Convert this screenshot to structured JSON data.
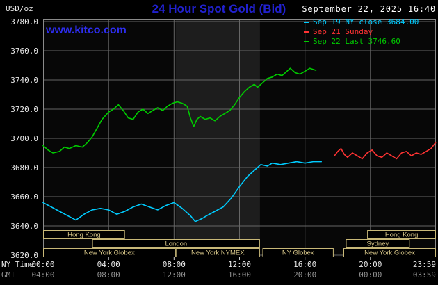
{
  "colors": {
    "background": "#000000",
    "title_blue": "#2121cf",
    "watermark_blue": "#2d2dee",
    "grid": "#666666",
    "plot_border": "#8a8a8a",
    "plot_fill": "#070707",
    "axis_text": "#e8e8e8",
    "gmt_text": "#8f8f8f",
    "session_border": "#c8b878",
    "session_text": "#d9c88a",
    "nymex_band": "#1d1d1d",
    "tick_mark": "#cfcfcf"
  },
  "header": {
    "unit_label": "USD/oz",
    "title": "24 Hour Spot Gold (Bid)",
    "datetime": "September 22, 2025 16:40",
    "watermark": "www.kitco.com"
  },
  "legend": [
    {
      "label": "Sep 19 NY close 3684.00",
      "color": "#00ccff"
    },
    {
      "label": "Sep 21 Sunday",
      "color": "#ff3333"
    },
    {
      "label": "Sep 22 Last 3746.60",
      "color": "#00cc00"
    }
  ],
  "axes": {
    "ny_time_label": "NY Time",
    "gmt_label": "GMT",
    "y_ticks": [
      {
        "value": 3780,
        "label": "3780.0"
      },
      {
        "value": 3760,
        "label": "3760.0"
      },
      {
        "value": 3740,
        "label": "3740.0"
      },
      {
        "value": 3720,
        "label": "3720.0"
      },
      {
        "value": 3700,
        "label": "3700.0"
      },
      {
        "value": 3680,
        "label": "3680.0"
      },
      {
        "value": 3660,
        "label": "3660.0"
      },
      {
        "value": 3640,
        "label": "3640.0"
      },
      {
        "value": 3620,
        "label": "3620.0"
      }
    ],
    "ny_ticks": [
      {
        "hour": 0,
        "label": "00:00"
      },
      {
        "hour": 4,
        "label": "04:00"
      },
      {
        "hour": 8,
        "label": "08:00"
      },
      {
        "hour": 12,
        "label": "12:00"
      },
      {
        "hour": 16,
        "label": "16:00"
      },
      {
        "hour": 20,
        "label": "20:00"
      },
      {
        "hour": 23.983,
        "label": "23:59",
        "align": "right"
      }
    ],
    "gmt_ticks": [
      {
        "hour": 0,
        "label": "04:00"
      },
      {
        "hour": 4,
        "label": "08:00"
      },
      {
        "hour": 8,
        "label": "12:00"
      },
      {
        "hour": 12,
        "label": "16:00"
      },
      {
        "hour": 16,
        "label": "20:00"
      },
      {
        "hour": 20,
        "label": "00:00"
      },
      {
        "hour": 23.983,
        "label": "03:59",
        "align": "right"
      }
    ]
  },
  "sessions": {
    "rows": [
      [
        {
          "label": "Hong Kong",
          "start": 0,
          "end": 5.0
        },
        {
          "label": "Hong Kong",
          "start": 19.8,
          "end": 24
        }
      ],
      [
        {
          "label": "London",
          "start": 3.0,
          "end": 13.25
        },
        {
          "label": "Sydney",
          "start": 18.5,
          "end": 22.4
        }
      ],
      [
        {
          "label": "New York Globex",
          "start": 0,
          "end": 8.1
        },
        {
          "label": "New York NYMEX",
          "start": 8.1,
          "end": 13.25
        },
        {
          "label": "NY Globex",
          "start": 13.4,
          "end": 17.75
        },
        {
          "label": "New York Globex",
          "start": 18.35,
          "end": 24
        }
      ]
    ]
  },
  "chart_data": {
    "type": "line",
    "title": "24 Hour Spot Gold (Bid)",
    "xlabel": "NY Time (hours)",
    "ylabel": "USD/oz",
    "xlim_hours": [
      0,
      24
    ],
    "ylim": [
      3620,
      3780
    ],
    "y_grid_step": 20,
    "x_grid_hours": [
      4,
      8,
      12,
      16,
      20
    ],
    "highlight_band_hours": [
      8.1,
      13.25
    ],
    "series": [
      {
        "name": "Sep 19 NY close",
        "color": "#00ccff",
        "final_value": 3684.0,
        "points": [
          [
            0,
            3656
          ],
          [
            0.5,
            3653
          ],
          [
            1,
            3650
          ],
          [
            1.5,
            3647
          ],
          [
            2,
            3644
          ],
          [
            2.5,
            3648
          ],
          [
            3,
            3651
          ],
          [
            3.5,
            3652
          ],
          [
            4,
            3651
          ],
          [
            4.5,
            3648
          ],
          [
            5,
            3650
          ],
          [
            5.5,
            3653
          ],
          [
            6,
            3655
          ],
          [
            6.5,
            3653
          ],
          [
            7,
            3651
          ],
          [
            7.5,
            3654
          ],
          [
            8,
            3656
          ],
          [
            8.5,
            3652
          ],
          [
            9,
            3647
          ],
          [
            9.3,
            3643
          ],
          [
            9.7,
            3645
          ],
          [
            10,
            3647
          ],
          [
            10.5,
            3650
          ],
          [
            11,
            3653
          ],
          [
            11.5,
            3659
          ],
          [
            12,
            3667
          ],
          [
            12.5,
            3674
          ],
          [
            13,
            3679
          ],
          [
            13.3,
            3682
          ],
          [
            13.7,
            3681
          ],
          [
            14,
            3683
          ],
          [
            14.5,
            3682
          ],
          [
            15,
            3683
          ],
          [
            15.5,
            3684
          ],
          [
            16,
            3683
          ],
          [
            16.5,
            3684
          ],
          [
            17,
            3684
          ]
        ]
      },
      {
        "name": "Sep 21 Sunday",
        "color": "#ff3333",
        "points": [
          [
            17.8,
            3688
          ],
          [
            18,
            3691
          ],
          [
            18.2,
            3693
          ],
          [
            18.4,
            3689
          ],
          [
            18.6,
            3687
          ],
          [
            18.9,
            3690
          ],
          [
            19.2,
            3688
          ],
          [
            19.5,
            3686
          ],
          [
            19.8,
            3690
          ],
          [
            20.1,
            3692
          ],
          [
            20.4,
            3688
          ],
          [
            20.7,
            3687
          ],
          [
            21,
            3690
          ],
          [
            21.3,
            3688
          ],
          [
            21.6,
            3686
          ],
          [
            21.9,
            3690
          ],
          [
            22.2,
            3691
          ],
          [
            22.5,
            3688
          ],
          [
            22.8,
            3690
          ],
          [
            23.1,
            3689
          ],
          [
            23.4,
            3691
          ],
          [
            23.7,
            3693
          ],
          [
            23.98,
            3697
          ]
        ]
      },
      {
        "name": "Sep 22 Last",
        "color": "#00cc00",
        "final_value": 3746.6,
        "points": [
          [
            0,
            3695
          ],
          [
            0.3,
            3692
          ],
          [
            0.6,
            3690
          ],
          [
            1,
            3691
          ],
          [
            1.3,
            3694
          ],
          [
            1.6,
            3693
          ],
          [
            2,
            3695
          ],
          [
            2.4,
            3694
          ],
          [
            2.7,
            3697
          ],
          [
            3,
            3701
          ],
          [
            3.3,
            3707
          ],
          [
            3.6,
            3713
          ],
          [
            4,
            3718
          ],
          [
            4.3,
            3720
          ],
          [
            4.6,
            3723
          ],
          [
            4.9,
            3719
          ],
          [
            5.2,
            3714
          ],
          [
            5.5,
            3713
          ],
          [
            5.8,
            3718
          ],
          [
            6.1,
            3720
          ],
          [
            6.4,
            3717
          ],
          [
            6.7,
            3719
          ],
          [
            7,
            3721
          ],
          [
            7.3,
            3719
          ],
          [
            7.6,
            3722
          ],
          [
            7.9,
            3724
          ],
          [
            8.2,
            3725
          ],
          [
            8.5,
            3724
          ],
          [
            8.8,
            3722
          ],
          [
            9,
            3714
          ],
          [
            9.2,
            3708
          ],
          [
            9.4,
            3713
          ],
          [
            9.6,
            3715
          ],
          [
            9.9,
            3713
          ],
          [
            10.2,
            3714
          ],
          [
            10.5,
            3712
          ],
          [
            10.8,
            3715
          ],
          [
            11.1,
            3717
          ],
          [
            11.4,
            3719
          ],
          [
            11.7,
            3723
          ],
          [
            12,
            3728
          ],
          [
            12.3,
            3732
          ],
          [
            12.6,
            3735
          ],
          [
            12.9,
            3737
          ],
          [
            13.1,
            3735
          ],
          [
            13.4,
            3738
          ],
          [
            13.7,
            3741
          ],
          [
            14,
            3742
          ],
          [
            14.3,
            3744
          ],
          [
            14.6,
            3743
          ],
          [
            14.9,
            3746
          ],
          [
            15.1,
            3748
          ],
          [
            15.4,
            3745
          ],
          [
            15.7,
            3744
          ],
          [
            16,
            3746
          ],
          [
            16.3,
            3748
          ],
          [
            16.67,
            3746.6
          ]
        ]
      }
    ]
  }
}
